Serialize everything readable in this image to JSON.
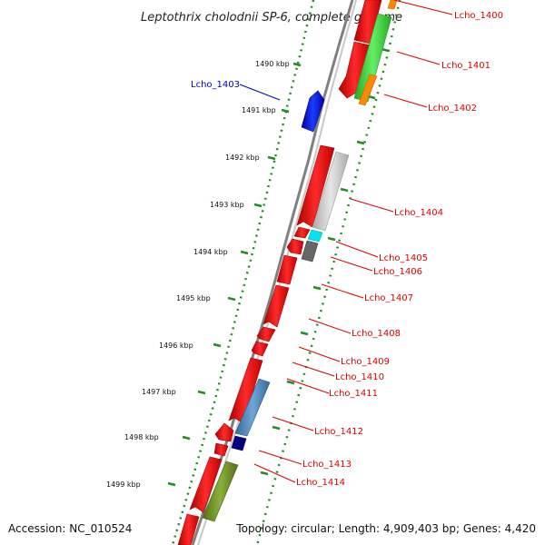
{
  "title": "Leptothrix cholodnii SP-6, complete genome",
  "footer": {
    "accession": "Accession: NC_010524",
    "summary": "Topology: circular; Length: 4,909,403 bp; Genes: 4,420"
  },
  "ticks": [
    {
      "kbp": 1490,
      "label": "1490 kbp"
    },
    {
      "kbp": 1491,
      "label": "1491 kbp"
    },
    {
      "kbp": 1492,
      "label": "1492 kbp"
    },
    {
      "kbp": 1493,
      "label": "1493 kbp"
    },
    {
      "kbp": 1494,
      "label": "1494 kbp"
    },
    {
      "kbp": 1495,
      "label": "1495 kbp"
    },
    {
      "kbp": 1496,
      "label": "1496 kbp"
    },
    {
      "kbp": 1497,
      "label": "1497 kbp"
    },
    {
      "kbp": 1498,
      "label": "1498 kbp"
    },
    {
      "kbp": 1499,
      "label": "1499 kbp"
    }
  ],
  "gene_labels": [
    {
      "id": "lcho-1400",
      "text": "Lcho_1400",
      "color": "#dd0000"
    },
    {
      "id": "lcho-1401",
      "text": "Lcho_1401",
      "color": "#dd0000"
    },
    {
      "id": "lcho-1402",
      "text": "Lcho_1402",
      "color": "#dd0000"
    },
    {
      "id": "lcho-1403",
      "text": "Lcho_1403",
      "color": "#0000cc"
    },
    {
      "id": "lcho-1404",
      "text": "Lcho_1404",
      "color": "#dd0000"
    },
    {
      "id": "lcho-1405",
      "text": "Lcho_1405",
      "color": "#dd0000"
    },
    {
      "id": "lcho-1406",
      "text": "Lcho_1406",
      "color": "#dd0000"
    },
    {
      "id": "lcho-1407",
      "text": "Lcho_1407",
      "color": "#dd0000"
    },
    {
      "id": "lcho-1408",
      "text": "Lcho_1408",
      "color": "#dd0000"
    },
    {
      "id": "lcho-1409",
      "text": "Lcho_1409",
      "color": "#dd0000"
    },
    {
      "id": "lcho-1410",
      "text": "Lcho_1410",
      "color": "#dd0000"
    },
    {
      "id": "lcho-1411",
      "text": "Lcho_1411",
      "color": "#dd0000"
    },
    {
      "id": "lcho-1412",
      "text": "Lcho_1412",
      "color": "#dd0000"
    },
    {
      "id": "lcho-1413",
      "text": "Lcho_1413",
      "color": "#dd0000"
    },
    {
      "id": "lcho-1414",
      "text": "Lcho_1414",
      "color": "#dd0000"
    }
  ],
  "colors": {
    "backbone": "#808080",
    "tick": "#228B22",
    "cds": "#ff0000",
    "forward_feature": "#0000ee",
    "rna_feature": "#33cc33",
    "other_feature": "#bbbbbb",
    "accent_orange": "#ff8800",
    "accent_cyan": "#00e5ee",
    "accent_darkgray": "#666666",
    "accent_steelblue": "#4682b4",
    "accent_navy": "#000080",
    "accent_olive": "#6b8e23"
  }
}
